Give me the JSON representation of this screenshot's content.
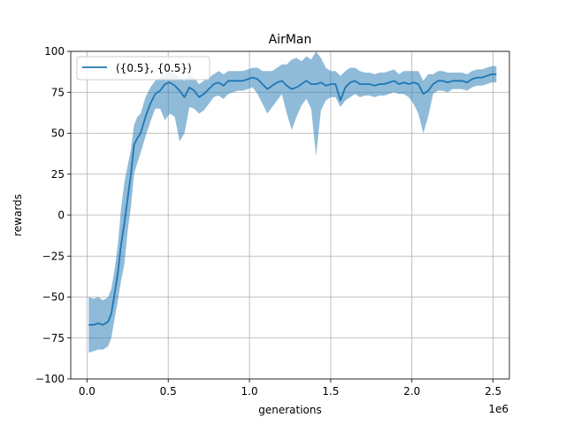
{
  "chart_data": {
    "type": "line",
    "title": "AirMan",
    "xlabel": "generations",
    "ylabel": "rewards",
    "x_offset_label": "1e6",
    "xlim": [
      -0.1,
      2.6
    ],
    "ylim": [
      -100,
      100
    ],
    "x_ticks": [
      0.0,
      0.5,
      1.0,
      1.5,
      2.0,
      2.5
    ],
    "x_tick_labels": [
      "0.0",
      "0.5",
      "1.0",
      "1.5",
      "2.0",
      "2.5"
    ],
    "y_ticks": [
      -100,
      -75,
      -50,
      -25,
      0,
      25,
      50,
      75,
      100
    ],
    "y_tick_labels": [
      "−100",
      "−75",
      "−50",
      "−25",
      "0",
      "25",
      "50",
      "75",
      "100"
    ],
    "grid": true,
    "legend_position": "top-left",
    "colors": {
      "line": "#1f77b4",
      "band": "#1f77b4",
      "grid": "#b0b0b0"
    },
    "series": [
      {
        "name": "({0.5}, {0.5})",
        "x": [
          0.01,
          0.04,
          0.07,
          0.1,
          0.13,
          0.15,
          0.17,
          0.19,
          0.21,
          0.23,
          0.25,
          0.27,
          0.29,
          0.31,
          0.33,
          0.36,
          0.39,
          0.42,
          0.45,
          0.48,
          0.51,
          0.54,
          0.57,
          0.6,
          0.63,
          0.66,
          0.69,
          0.72,
          0.75,
          0.78,
          0.81,
          0.84,
          0.87,
          0.9,
          0.93,
          0.96,
          0.99,
          1.02,
          1.05,
          1.08,
          1.11,
          1.14,
          1.17,
          1.2,
          1.23,
          1.26,
          1.29,
          1.32,
          1.35,
          1.38,
          1.41,
          1.44,
          1.47,
          1.5,
          1.53,
          1.56,
          1.59,
          1.62,
          1.65,
          1.68,
          1.71,
          1.74,
          1.77,
          1.8,
          1.83,
          1.86,
          1.89,
          1.92,
          1.95,
          1.98,
          2.01,
          2.04,
          2.07,
          2.1,
          2.13,
          2.16,
          2.19,
          2.22,
          2.25,
          2.28,
          2.31,
          2.34,
          2.37,
          2.4,
          2.43,
          2.46,
          2.49,
          2.52
        ],
        "mean": [
          -67,
          -67,
          -66,
          -67,
          -65,
          -60,
          -48,
          -35,
          -18,
          -5,
          10,
          25,
          43,
          47,
          50,
          60,
          68,
          74,
          76,
          80,
          81,
          79,
          76,
          72,
          78,
          76,
          72,
          74,
          77,
          80,
          81,
          79,
          82,
          82,
          82,
          82,
          83,
          84,
          83,
          80,
          77,
          79,
          81,
          82,
          79,
          77,
          78,
          80,
          82,
          80,
          80,
          81,
          79,
          80,
          80,
          70,
          78,
          81,
          82,
          80,
          80,
          80,
          79,
          80,
          80,
          81,
          82,
          80,
          81,
          80,
          81,
          80,
          74,
          76,
          80,
          82,
          82,
          81,
          82,
          82,
          82,
          81,
          83,
          84,
          84,
          85,
          86,
          86
        ],
        "lower": [
          -84,
          -83,
          -82,
          -82,
          -80,
          -75,
          -63,
          -52,
          -40,
          -30,
          -10,
          5,
          25,
          32,
          38,
          48,
          57,
          65,
          65,
          58,
          62,
          60,
          45,
          50,
          66,
          65,
          62,
          64,
          68,
          72,
          73,
          71,
          74,
          75,
          76,
          76,
          77,
          78,
          74,
          68,
          62,
          66,
          70,
          74,
          62,
          52,
          60,
          67,
          71,
          65,
          36,
          64,
          70,
          72,
          72,
          66,
          70,
          72,
          74,
          72,
          73,
          73,
          72,
          73,
          73,
          74,
          75,
          74,
          74,
          72,
          68,
          62,
          50,
          60,
          74,
          76,
          76,
          75,
          77,
          77,
          77,
          76,
          78,
          79,
          79,
          80,
          81,
          81
        ],
        "upper": [
          -50,
          -51,
          -50,
          -52,
          -50,
          -45,
          -33,
          -18,
          4,
          20,
          30,
          40,
          55,
          60,
          62,
          72,
          78,
          82,
          84,
          86,
          88,
          86,
          84,
          82,
          86,
          84,
          80,
          82,
          84,
          86,
          88,
          86,
          88,
          88,
          88,
          88,
          89,
          90,
          90,
          88,
          88,
          88,
          90,
          92,
          92,
          95,
          96,
          94,
          97,
          95,
          100,
          96,
          90,
          88,
          88,
          85,
          88,
          90,
          90,
          88,
          87,
          87,
          86,
          87,
          87,
          88,
          89,
          86,
          88,
          88,
          88,
          88,
          82,
          86,
          86,
          88,
          88,
          87,
          87,
          87,
          87,
          86,
          88,
          89,
          89,
          90,
          91,
          91
        ]
      }
    ]
  }
}
